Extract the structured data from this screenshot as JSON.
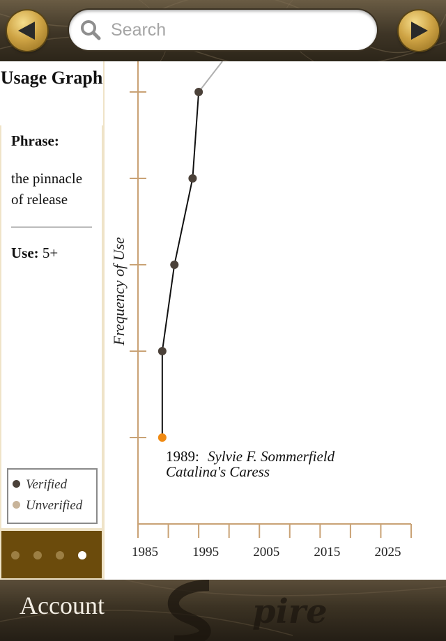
{
  "search": {
    "placeholder": "Search"
  },
  "sidebar": {
    "title": "Usage Graph",
    "phrase_label": "Phrase:",
    "phrase_text": "the pinnacle of release",
    "use_label": "Use:",
    "use_value": "5+"
  },
  "legend": {
    "verified": "Verified",
    "unverified": "Unverified",
    "colors": {
      "verified": "#4b4139",
      "unverified": "#c8b49a",
      "highlight": "#f08a12"
    }
  },
  "pager": {
    "count": 4,
    "active_index": 3
  },
  "chart_data": {
    "type": "line",
    "ylabel": "Frequency of Use",
    "xlabel": "",
    "x_ticks": [
      "1985",
      "1995",
      "2005",
      "2015",
      "2025"
    ],
    "xlim": [
      1985,
      2030
    ],
    "ylim": [
      0,
      5
    ],
    "points": [
      {
        "x": 1989,
        "y": 1,
        "status": "highlighted"
      },
      {
        "x": 1989,
        "y": 2,
        "status": "verified"
      },
      {
        "x": 1991,
        "y": 3,
        "status": "verified"
      },
      {
        "x": 1994,
        "y": 4,
        "status": "verified"
      },
      {
        "x": 1995,
        "y": 5,
        "status": "verified"
      }
    ],
    "annotation": {
      "year": "1989:",
      "author": "Sylvie F. Sommerfield",
      "work": "Catalina's Caress"
    }
  },
  "bottom_bar": {
    "account_label": "Account"
  },
  "icons": {
    "back": "back-arrow-icon",
    "forward": "forward-arrow-icon",
    "search": "search-icon"
  }
}
